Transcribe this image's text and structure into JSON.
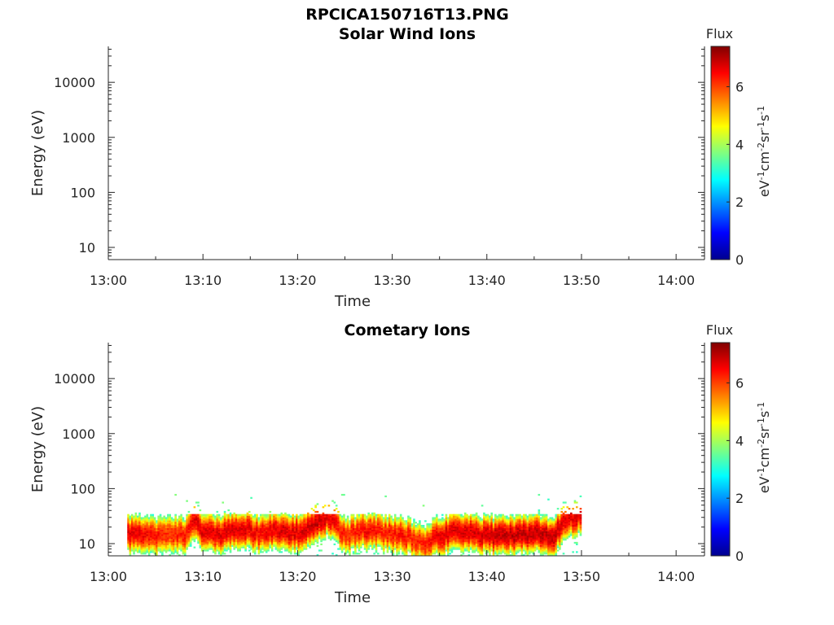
{
  "figure_title": "RPCICA150716T13.PNG",
  "chart_data": [
    {
      "type": "heatmap",
      "title": "Solar Wind Ions",
      "xlabel": "Time",
      "ylabel": "Energy (eV)",
      "x_ticks": [
        "13:00",
        "13:10",
        "13:20",
        "13:30",
        "13:40",
        "13:50",
        "14:00"
      ],
      "x_range_minutes": [
        0,
        63
      ],
      "y_scale": "log",
      "y_ticks": [
        "10",
        "100",
        "1000",
        "10000"
      ],
      "y_range": [
        6,
        45000
      ],
      "colorbar": {
        "title": "Flux",
        "label": "eV-1cm-2sr-1s-1",
        "ticks": [
          "0",
          "2",
          "4",
          "6"
        ],
        "range": [
          0,
          7.4
        ],
        "colormap": "jet"
      },
      "data": []
    },
    {
      "type": "heatmap",
      "title": "Cometary Ions",
      "xlabel": "Time",
      "ylabel": "Energy (eV)",
      "x_ticks": [
        "13:00",
        "13:10",
        "13:20",
        "13:30",
        "13:40",
        "13:50",
        "14:00"
      ],
      "x_range_minutes": [
        0,
        63
      ],
      "y_scale": "log",
      "y_ticks": [
        "10",
        "100",
        "1000",
        "10000"
      ],
      "y_range": [
        6,
        45000
      ],
      "colorbar": {
        "title": "Flux",
        "label": "eV-1cm-2sr-1s-1",
        "ticks": [
          "0",
          "2",
          "4",
          "6"
        ],
        "range": [
          0,
          7.4
        ],
        "colormap": "jet"
      },
      "data_coverage_minutes": [
        2,
        50
      ],
      "data_energy_range_eV": [
        6,
        80
      ],
      "band_profile": {
        "minutes": [
          2,
          4,
          6,
          8,
          9,
          10,
          12,
          14,
          16,
          18,
          20,
          22,
          23,
          25,
          27,
          29,
          31,
          33,
          35,
          37,
          39,
          41,
          43,
          45,
          47,
          48,
          49,
          50
        ],
        "peak_energy": [
          16,
          14,
          15,
          14,
          25,
          16,
          15,
          20,
          15,
          18,
          16,
          25,
          30,
          14,
          18,
          16,
          15,
          10,
          14,
          17,
          15,
          14,
          15,
          16,
          14,
          25,
          30,
          35
        ],
        "peak_flux": [
          7,
          6.8,
          6.5,
          6.6,
          7,
          7,
          7,
          7,
          6.8,
          7,
          7,
          7.2,
          7,
          6.5,
          6.8,
          6.6,
          6.7,
          6.5,
          7,
          7,
          7,
          7.2,
          7.2,
          7.2,
          7.2,
          7,
          7,
          7
        ]
      }
    }
  ]
}
